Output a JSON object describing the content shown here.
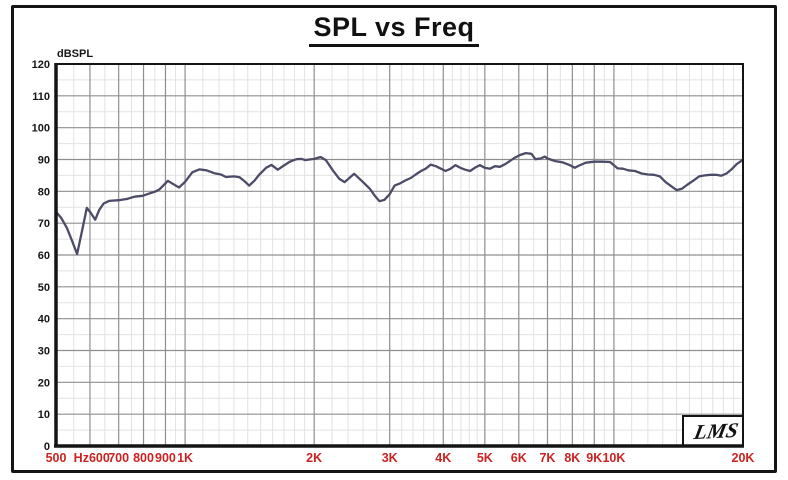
{
  "header": {
    "title": "SPL vs Freq"
  },
  "y_axis": {
    "unit_label": "dBSPL",
    "ticks": [
      "120",
      "110",
      "100",
      "90",
      "80",
      "70",
      "60",
      "50",
      "40",
      "30",
      "20",
      "10",
      "0"
    ]
  },
  "x_axis": {
    "unit_label": "Hz",
    "tick_labels": [
      {
        "label": "500",
        "f": 500
      },
      {
        "label": "600",
        "f": 600
      },
      {
        "label": "700",
        "f": 700
      },
      {
        "label": "800",
        "f": 800
      },
      {
        "label": "900",
        "f": 900
      },
      {
        "label": "1K",
        "f": 1000
      },
      {
        "label": "2K",
        "f": 2000
      },
      {
        "label": "3K",
        "f": 3000
      },
      {
        "label": "4K",
        "f": 4000
      },
      {
        "label": "5K",
        "f": 5000
      },
      {
        "label": "6K",
        "f": 6000
      },
      {
        "label": "7K",
        "f": 7000
      },
      {
        "label": "8K",
        "f": 8000
      },
      {
        "label": "9K",
        "f": 9000
      },
      {
        "label": "10K",
        "f": 10000
      },
      {
        "label": "20K",
        "f": 20000
      }
    ]
  },
  "logo": {
    "text": "LMS"
  },
  "colors": {
    "curve": "#4c4c68",
    "tick_label_red": "#cc2222",
    "axis_label_black": "#161616",
    "grid_major": "#8f8f8f",
    "grid_minor": "#e2e2e2",
    "frame": "#141414"
  },
  "chart_data": {
    "type": "line",
    "title": "SPL vs Freq",
    "ylabel": "dBSPL",
    "xlabel": "Hz",
    "x_scale": "log",
    "xlim": [
      500,
      20000
    ],
    "ylim": [
      0,
      120
    ],
    "grid": "on",
    "legend": "none",
    "y_major_step": 10,
    "y_minor_step": 5,
    "x_major_ticks": [
      600,
      700,
      800,
      900,
      1000,
      2000,
      3000,
      4000,
      5000,
      6000,
      7000,
      8000,
      9000,
      10000,
      20000
    ],
    "x_minor_ticks": [
      550,
      650,
      750,
      850,
      950,
      1100,
      1200,
      1300,
      1400,
      1500,
      1600,
      1700,
      1800,
      1900,
      2200,
      2400,
      2600,
      2800,
      3200,
      3400,
      3600,
      3800,
      4200,
      4400,
      4600,
      4800,
      5500,
      6500,
      7500,
      8500,
      9500,
      11000,
      12000,
      13000,
      14000,
      15000,
      16000,
      17000,
      18000,
      19000
    ],
    "series": [
      {
        "name": "SPL",
        "color": "#4c4c68",
        "points": [
          [
            500,
            73.6
          ],
          [
            515,
            71.5
          ],
          [
            530,
            68.5
          ],
          [
            545,
            64.5
          ],
          [
            560,
            60.3
          ],
          [
            575,
            67.5
          ],
          [
            590,
            74.8
          ],
          [
            603,
            73.2
          ],
          [
            617,
            71.1
          ],
          [
            631,
            74.2
          ],
          [
            646,
            76.2
          ],
          [
            665,
            77.0
          ],
          [
            700,
            77.2
          ],
          [
            731,
            77.6
          ],
          [
            762,
            78.3
          ],
          [
            796,
            78.6
          ],
          [
            820,
            79.2
          ],
          [
            851,
            79.9
          ],
          [
            871,
            80.6
          ],
          [
            912,
            83.3
          ],
          [
            940,
            82.2
          ],
          [
            968,
            81.2
          ],
          [
            1000,
            83.0
          ],
          [
            1040,
            86.0
          ],
          [
            1080,
            86.9
          ],
          [
            1122,
            86.6
          ],
          [
            1170,
            85.7
          ],
          [
            1213,
            85.3
          ],
          [
            1245,
            84.5
          ],
          [
            1300,
            84.7
          ],
          [
            1340,
            84.4
          ],
          [
            1375,
            83.2
          ],
          [
            1410,
            81.8
          ],
          [
            1450,
            83.3
          ],
          [
            1490,
            85.3
          ],
          [
            1545,
            87.4
          ],
          [
            1590,
            88.3
          ],
          [
            1645,
            86.8
          ],
          [
            1700,
            88.1
          ],
          [
            1760,
            89.4
          ],
          [
            1820,
            90.1
          ],
          [
            1870,
            90.2
          ],
          [
            1905,
            89.8
          ],
          [
            1950,
            90.0
          ],
          [
            2000,
            90.2
          ],
          [
            2070,
            90.8
          ],
          [
            2130,
            89.8
          ],
          [
            2210,
            86.6
          ],
          [
            2290,
            83.9
          ],
          [
            2355,
            82.9
          ],
          [
            2480,
            85.5
          ],
          [
            2600,
            82.9
          ],
          [
            2700,
            80.7
          ],
          [
            2770,
            78.6
          ],
          [
            2840,
            76.9
          ],
          [
            2915,
            77.3
          ],
          [
            3000,
            79.1
          ],
          [
            3080,
            81.8
          ],
          [
            3170,
            82.5
          ],
          [
            3260,
            83.4
          ],
          [
            3360,
            84.2
          ],
          [
            3450,
            85.3
          ],
          [
            3550,
            86.4
          ],
          [
            3640,
            87.1
          ],
          [
            3740,
            88.4
          ],
          [
            3845,
            87.9
          ],
          [
            3950,
            87.1
          ],
          [
            4050,
            86.4
          ],
          [
            4160,
            87.1
          ],
          [
            4270,
            88.2
          ],
          [
            4400,
            87.3
          ],
          [
            4500,
            86.8
          ],
          [
            4620,
            86.4
          ],
          [
            4750,
            87.5
          ],
          [
            4870,
            88.2
          ],
          [
            5000,
            87.4
          ],
          [
            5140,
            87.1
          ],
          [
            5280,
            87.9
          ],
          [
            5420,
            87.7
          ],
          [
            5570,
            88.5
          ],
          [
            5880,
            90.6
          ],
          [
            6040,
            91.4
          ],
          [
            6230,
            92.0
          ],
          [
            6420,
            91.8
          ],
          [
            6560,
            90.1
          ],
          [
            6750,
            90.3
          ],
          [
            6900,
            90.9
          ],
          [
            7000,
            90.3
          ],
          [
            7300,
            89.5
          ],
          [
            7600,
            89.1
          ],
          [
            7900,
            88.2
          ],
          [
            8100,
            87.4
          ],
          [
            8300,
            88.1
          ],
          [
            8600,
            89.0
          ],
          [
            9000,
            89.3
          ],
          [
            9400,
            89.3
          ],
          [
            9800,
            89.2
          ],
          [
            10200,
            87.2
          ],
          [
            10500,
            87.1
          ],
          [
            10800,
            86.6
          ],
          [
            11200,
            86.4
          ],
          [
            11600,
            85.6
          ],
          [
            12000,
            85.3
          ],
          [
            12400,
            85.2
          ],
          [
            12800,
            84.7
          ],
          [
            13200,
            82.9
          ],
          [
            13600,
            81.6
          ],
          [
            14000,
            80.4
          ],
          [
            14400,
            80.8
          ],
          [
            14800,
            82.0
          ],
          [
            15300,
            83.3
          ],
          [
            15800,
            84.7
          ],
          [
            16300,
            85.0
          ],
          [
            16800,
            85.2
          ],
          [
            17300,
            85.2
          ],
          [
            17800,
            84.9
          ],
          [
            18300,
            85.6
          ],
          [
            18800,
            86.9
          ],
          [
            19300,
            88.5
          ],
          [
            19700,
            89.3
          ],
          [
            20000,
            90.0
          ]
        ]
      }
    ]
  }
}
